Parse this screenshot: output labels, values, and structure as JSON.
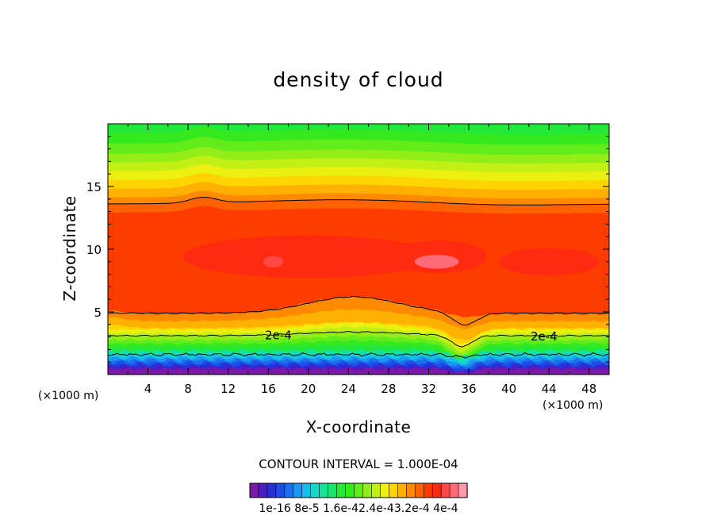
{
  "chart_data": {
    "type": "heatmap",
    "title": "density of cloud",
    "xlabel": "X-coordinate",
    "ylabel": "Z-coordinate",
    "x_unit_left": "(×1000 m)",
    "x_unit_right": "(×1000 m)",
    "x_ticks": [
      "4",
      "8",
      "12",
      "16",
      "20",
      "24",
      "28",
      "32",
      "36",
      "40",
      "44",
      "48"
    ],
    "y_ticks": [
      "5",
      "10",
      "15"
    ],
    "xlim": [
      0,
      50
    ],
    "ylim": [
      0,
      20
    ],
    "contour_interval_text": "CONTOUR INTERVAL = 1.000E-04",
    "contour_interval": 0.0001,
    "contour_label": "2e-4",
    "colorbar_labels_text": "1e-16 8e-5 1.6e-42.4e-43.2e-4 4e-4",
    "colorbar_colors": [
      "#7a18a8",
      "#4b1dc2",
      "#2a2ed8",
      "#1d4de6",
      "#1a70ee",
      "#1a98f0",
      "#16bfe8",
      "#14d8c8",
      "#16e29a",
      "#1be66a",
      "#22e83a",
      "#34ea1e",
      "#62ec1a",
      "#93ee18",
      "#c2f014",
      "#ecf010",
      "#ffd400",
      "#ffb000",
      "#ff8a00",
      "#ff6200",
      "#ff3c00",
      "#ff2a10",
      "#ff4a48",
      "#ff6a78",
      "#ff9aa8"
    ],
    "grid": false
  }
}
